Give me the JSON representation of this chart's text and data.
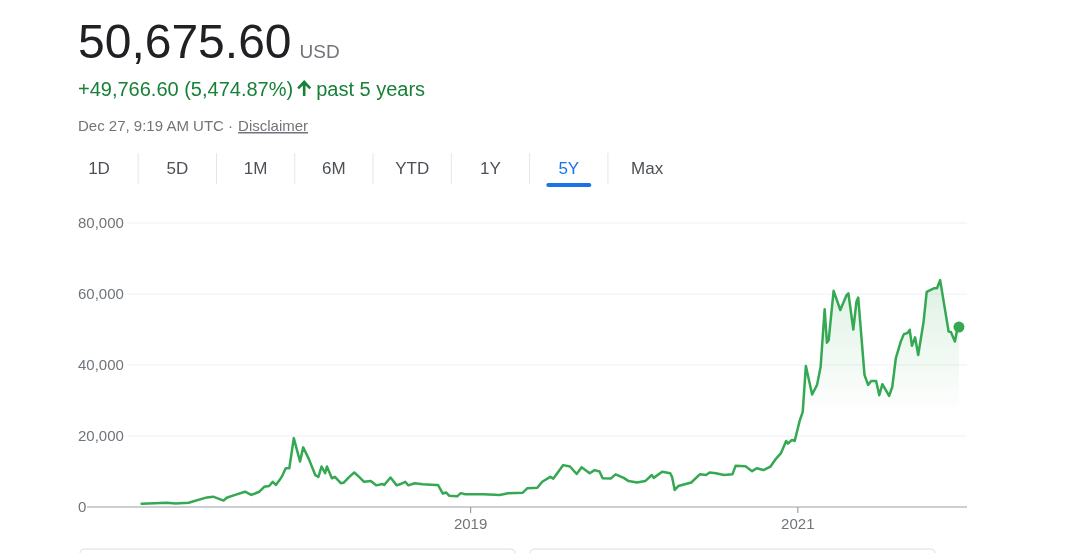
{
  "chart_data": {
    "type": "area",
    "title": "50,675.60",
    "subtitle": "USD",
    "annotations": [
      "+49,766.60 (5,474.87%)",
      "past 5 years",
      "Dec 27, 9:19 AM UTC ·",
      "Disclaimer",
      "1D",
      "5D",
      "1M",
      "6M",
      "YTD",
      "1Y",
      "5Y",
      "Max"
    ],
    "xlim": [
      "2016-08-27",
      "2022-01-14"
    ],
    "xticks": [
      "2019",
      "2021"
    ],
    "ylim": [
      0,
      80000
    ],
    "yticks": [
      0,
      {
        "value": 20000,
        "label": "20,000"
      },
      {
        "value": 40000,
        "label": "40,000"
      },
      {
        "value": 60000,
        "label": "60,000"
      },
      {
        "value": 80000,
        "label": "80,000"
      }
    ],
    "grid": "y",
    "series": [
      {
        "color": "#34a853",
        "x": [
          "2016-12-27",
          "2017-02-22",
          "2017-03-13",
          "2017-04-11",
          "2017-05-22",
          "2017-06-05",
          "2017-06-28",
          "2017-07-05",
          "2017-07-24",
          "2017-08-15",
          "2017-08-29",
          "2017-09-16",
          "2017-09-27",
          "2017-10-08",
          "2017-10-16",
          "2017-10-23",
          "2017-11-03",
          "2017-11-07",
          "2017-11-14",
          "2017-11-22",
          "2017-12-02",
          "2017-12-16",
          "2017-12-23",
          "2018-01-04",
          "2018-01-19",
          "2018-01-26",
          "2018-02-02",
          "2018-02-10",
          "2018-02-14",
          "2018-02-25",
          "2018-03-04",
          "2018-03-17",
          "2018-03-23",
          "2018-04-05",
          "2018-04-16",
          "2018-04-27",
          "2018-05-08",
          "2018-05-23",
          "2018-06-04",
          "2018-06-18",
          "2018-06-22",
          "2018-07-06",
          "2018-07-20",
          "2018-07-27",
          "2018-08-08",
          "2018-08-15",
          "2018-08-29",
          "2018-09-16",
          "2018-10-16",
          "2018-10-20",
          "2018-10-31",
          "2018-11-07",
          "2018-11-14",
          "2018-12-02",
          "2018-12-10",
          "2018-12-20",
          "2019-01-30",
          "2019-03-07",
          "2019-03-26",
          "2019-04-27",
          "2019-05-08",
          "2019-05-30",
          "2019-06-10",
          "2019-06-28",
          "2019-07-05",
          "2019-07-27",
          "2019-08-11",
          "2019-08-26",
          "2019-09-06",
          "2019-09-24",
          "2019-10-05",
          "2019-10-16",
          "2019-10-23",
          "2019-11-10",
          "2019-11-21",
          "2019-12-09",
          "2019-12-20",
          "2020-01-08",
          "2020-01-26",
          "2020-02-10",
          "2020-02-14",
          "2020-03-04",
          "2020-03-22",
          "2020-03-26",
          "2020-04-01",
          "2020-04-09",
          "2020-05-08",
          "2020-05-27",
          "2020-06-10",
          "2020-06-18",
          "2020-07-02",
          "2020-07-20",
          "2020-08-08",
          "2020-08-15",
          "2020-09-06",
          "2020-09-21",
          "2020-10-01",
          "2020-10-16",
          "2020-11-01",
          "2020-11-12",
          "2020-11-24",
          "2020-12-06",
          "2020-12-10",
          "2020-12-19",
          "2020-12-25",
          "2021-01-05",
          "2021-01-12",
          "2021-01-19",
          "2021-02-02",
          "2021-02-13",
          "2021-02-21",
          "2021-03-02",
          "2021-03-07",
          "2021-03-11",
          "2021-03-22",
          "2021-04-06",
          "2021-04-20",
          "2021-04-24",
          "2021-05-05",
          "2021-05-12",
          "2021-05-16",
          "2021-05-30",
          "2021-06-07",
          "2021-06-14",
          "2021-06-25",
          "2021-07-02",
          "2021-07-09",
          "2021-07-24",
          "2021-07-31",
          "2021-08-08",
          "2021-08-19",
          "2021-08-26",
          "2021-09-03",
          "2021-09-08",
          "2021-09-13",
          "2021-09-20",
          "2021-09-27",
          "2021-10-09",
          "2021-10-16",
          "2021-11-01",
          "2021-11-08",
          "2021-11-15",
          "2021-12-04",
          "2021-12-09",
          "2021-12-18",
          "2021-12-23",
          "2021-12-27"
        ],
        "values": [
          900,
          1200,
          1000,
          1200,
          2700,
          2900,
          1800,
          2600,
          3400,
          4300,
          3400,
          4300,
          5700,
          5900,
          7100,
          6200,
          8100,
          9000,
          10900,
          10900,
          19400,
          12800,
          16800,
          13700,
          9000,
          8500,
          11400,
          9500,
          11400,
          8100,
          8500,
          6700,
          6800,
          8500,
          9700,
          8500,
          7100,
          7300,
          6100,
          6500,
          6200,
          8300,
          6100,
          6400,
          7100,
          6100,
          6700,
          6400,
          6200,
          6200,
          3800,
          4100,
          3200,
          3000,
          3900,
          3600,
          3600,
          3400,
          3900,
          4000,
          5300,
          5400,
          7100,
          8500,
          8000,
          11800,
          11400,
          9300,
          11200,
          9500,
          10400,
          10000,
          8100,
          8000,
          9200,
          8200,
          7300,
          6900,
          7300,
          9000,
          8200,
          9900,
          9500,
          8500,
          4800,
          5900,
          6900,
          9200,
          9000,
          9700,
          9500,
          9000,
          9200,
          11600,
          11500,
          10100,
          10900,
          10400,
          11400,
          13400,
          15100,
          18600,
          17900,
          18900,
          18600,
          24200,
          26800,
          39700,
          31700,
          34400,
          39500,
          55700,
          46300,
          47000,
          60900,
          55500,
          59700,
          60200,
          50000,
          57800,
          59000,
          37200,
          34400,
          35500,
          35500,
          31500,
          34600,
          31300,
          33800,
          41900,
          46600,
          48700,
          49000,
          49900,
          45400,
          47800,
          42800,
          52200,
          60600,
          61600,
          61600,
          63900,
          49400,
          49300,
          46600,
          49900,
          50700
        ]
      },
      {
        "type": "scatter",
        "color": "#34a853",
        "x": [
          "2021-12-27"
        ],
        "values": [
          50700
        ]
      }
    ]
  }
}
